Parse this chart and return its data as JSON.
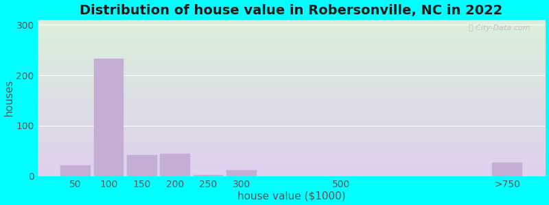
{
  "title": "Distribution of house value in Robersonville, NC in 2022",
  "xlabel": "house value ($1000)",
  "ylabel": "houses",
  "bar_labels": [
    "50",
    "100",
    "150",
    "200",
    "250",
    "300",
    "500",
    ">750"
  ],
  "bar_values": [
    22,
    232,
    42,
    45,
    3,
    12,
    0,
    27
  ],
  "bar_color": "#c4aed4",
  "bar_edgecolor": "#c4aed4",
  "yticks": [
    0,
    100,
    200,
    300
  ],
  "ylim": [
    0,
    310
  ],
  "background_outer": "#00ffff",
  "grad_top_left": "#eaf5e0",
  "grad_top_right": "#f5faf0",
  "grad_bottom_left": "#e8d8ee",
  "grad_bottom_right": "#f0e8f8",
  "title_fontsize": 14,
  "axis_label_fontsize": 11,
  "tick_fontsize": 10,
  "watermark": "City-Data.com",
  "positions": [
    0,
    1,
    2,
    3,
    4,
    5,
    8,
    13
  ],
  "bar_width": 0.9
}
